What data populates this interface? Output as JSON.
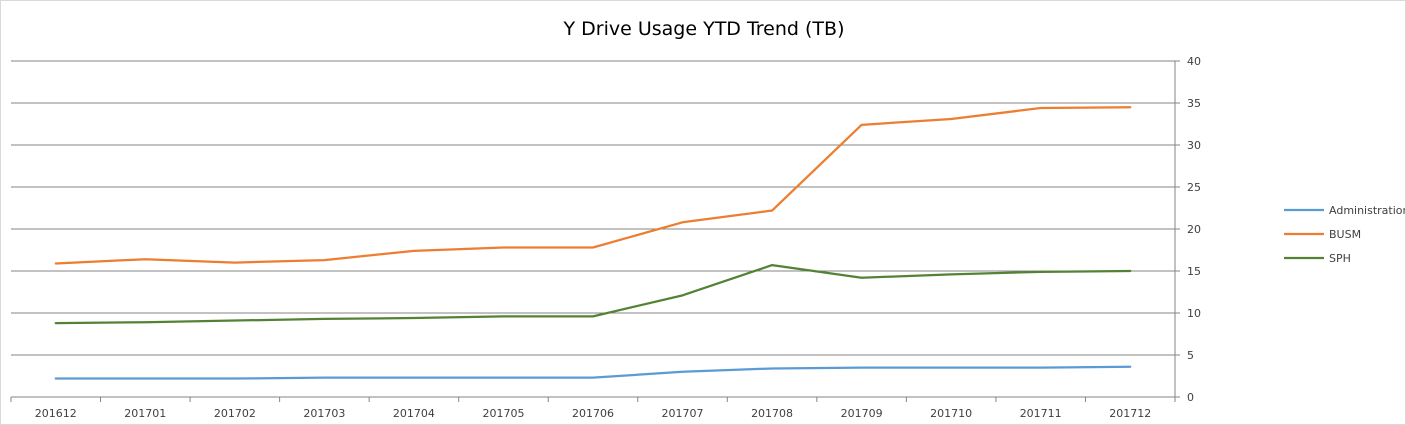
{
  "chart_data": {
    "type": "line",
    "title": "Y Drive Usage YTD Trend (TB)",
    "xlabel": "",
    "ylabel": "",
    "categories": [
      "201612",
      "201701",
      "201702",
      "201703",
      "201704",
      "201705",
      "201706",
      "201707",
      "201708",
      "201709",
      "201710",
      "201711",
      "201712"
    ],
    "ylim": [
      0,
      40
    ],
    "yticks": [
      0,
      5,
      10,
      15,
      20,
      25,
      30,
      35,
      40
    ],
    "y_axis_position": "right",
    "grid": true,
    "legend_position": "right",
    "series": [
      {
        "name": "Administration",
        "color": "#5b9bd5",
        "values": [
          2.2,
          2.2,
          2.2,
          2.3,
          2.3,
          2.3,
          2.3,
          3.0,
          3.4,
          3.5,
          3.5,
          3.5,
          3.6
        ]
      },
      {
        "name": "BUSM",
        "color": "#ed7d31",
        "values": [
          15.9,
          16.4,
          16.0,
          16.3,
          17.4,
          17.8,
          17.8,
          20.8,
          22.2,
          32.4,
          33.1,
          34.4,
          34.5
        ]
      },
      {
        "name": "SPH",
        "color": "#548235",
        "values": [
          8.8,
          8.9,
          9.1,
          9.3,
          9.4,
          9.6,
          9.6,
          12.1,
          15.7,
          14.2,
          14.6,
          14.9,
          15.0
        ]
      }
    ]
  }
}
